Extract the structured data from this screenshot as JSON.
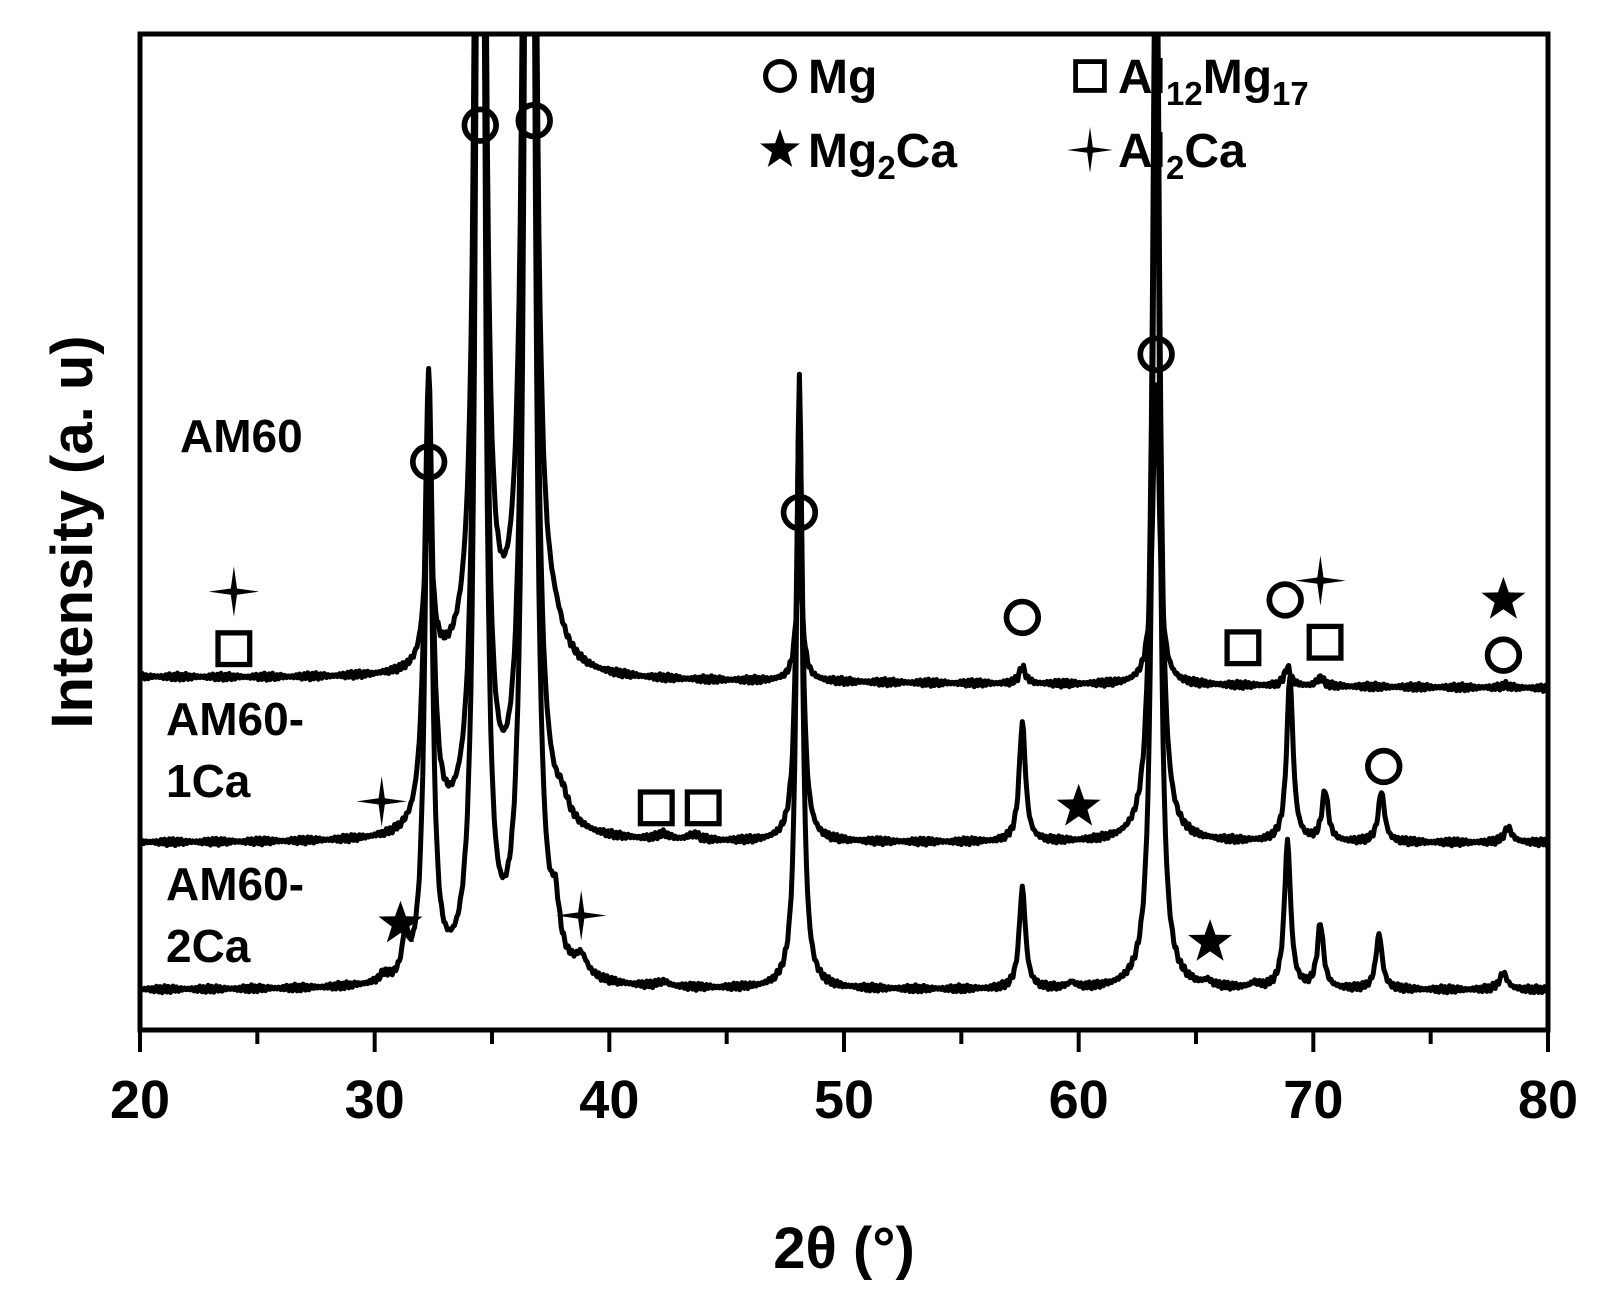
{
  "chart_data": {
    "type": "line",
    "xlabel": "2θ (°)",
    "ylabel": "Intensity (a. u)",
    "xlim": [
      20,
      80
    ],
    "x_ticks": [
      "20",
      "30",
      "40",
      "50",
      "60",
      "70",
      "80"
    ],
    "y_ticks": false,
    "grid": false,
    "legend_position": "top-right",
    "legend": [
      {
        "symbol": "circle",
        "label": "Mg",
        "parts": [
          {
            "t": "Mg",
            "sub": false
          }
        ]
      },
      {
        "symbol": "square",
        "label": "Al12Mg17",
        "parts": [
          {
            "t": "Al",
            "sub": false
          },
          {
            "t": "12",
            "sub": true
          },
          {
            "t": "Mg",
            "sub": false
          },
          {
            "t": "17",
            "sub": true
          }
        ]
      },
      {
        "symbol": "star5",
        "label": "Mg2Ca",
        "parts": [
          {
            "t": "Mg",
            "sub": false
          },
          {
            "t": "2",
            "sub": true
          },
          {
            "t": "Ca",
            "sub": false
          }
        ]
      },
      {
        "symbol": "star4",
        "label": "Al2Ca",
        "parts": [
          {
            "t": "Al",
            "sub": false
          },
          {
            "t": "2",
            "sub": true
          },
          {
            "t": "Ca",
            "sub": false
          }
        ]
      }
    ],
    "series": [
      {
        "name": "AM60",
        "label_lines": [
          "AM60"
        ],
        "baseline": 0.34,
        "drift": -0.012,
        "peaks": [
          [
            32.3,
            0.2,
            0.17
          ],
          [
            34.5,
            0.15,
            2.8
          ],
          [
            36.6,
            0.18,
            2.8
          ],
          [
            37.7,
            0.5,
            0.02
          ],
          [
            48.1,
            0.16,
            0.13
          ],
          [
            57.6,
            0.16,
            0.018
          ],
          [
            63.3,
            0.17,
            0.33
          ],
          [
            68.9,
            0.16,
            0.02
          ],
          [
            70.3,
            0.18,
            0.009
          ],
          [
            78.2,
            0.2,
            0.003
          ]
        ],
        "markers": [
          {
            "x": 32.3,
            "y": 0.574,
            "symbol": "circle"
          },
          {
            "x": 34.5,
            "y": 0.94,
            "symbol": "circle"
          },
          {
            "x": 36.8,
            "y": 0.945,
            "symbol": "circle"
          },
          {
            "x": 48.1,
            "y": 0.519,
            "symbol": "circle"
          },
          {
            "x": 57.6,
            "y": 0.405,
            "symbol": "circle"
          },
          {
            "x": 63.3,
            "y": 0.691,
            "symbol": "circle"
          },
          {
            "x": 68.8,
            "y": 0.424,
            "symbol": "circle"
          },
          {
            "x": 78.1,
            "y": 0.364,
            "symbol": "circle"
          },
          {
            "x": 24.0,
            "y": 0.371,
            "symbol": "square"
          },
          {
            "x": 67.0,
            "y": 0.372,
            "symbol": "square"
          },
          {
            "x": 70.5,
            "y": 0.378,
            "symbol": "square"
          },
          {
            "x": 24.0,
            "y": 0.433,
            "symbol": "star4"
          },
          {
            "x": 70.3,
            "y": 0.445,
            "symbol": "star4"
          },
          {
            "x": 78.1,
            "y": 0.424,
            "symbol": "star5"
          }
        ]
      },
      {
        "name": "AM60-1Ca",
        "label_lines": [
          "AM60-",
          "1Ca"
        ],
        "baseline": 0.16,
        "drift": -0.0,
        "peaks": [
          [
            32.3,
            0.2,
            0.5
          ],
          [
            34.5,
            0.15,
            2.5
          ],
          [
            36.6,
            0.18,
            2.5
          ],
          [
            38.0,
            0.3,
            0.02
          ],
          [
            42.3,
            0.3,
            0.006
          ],
          [
            43.6,
            0.3,
            0.006
          ],
          [
            48.1,
            0.15,
            0.48
          ],
          [
            57.6,
            0.16,
            0.13
          ],
          [
            63.3,
            0.17,
            1.1
          ],
          [
            69.0,
            0.16,
            0.18
          ],
          [
            70.5,
            0.16,
            0.055
          ],
          [
            72.9,
            0.16,
            0.055
          ],
          [
            78.3,
            0.2,
            0.016
          ]
        ],
        "markers": [
          {
            "x": 73.0,
            "y": 0.243,
            "symbol": "circle"
          },
          {
            "x": 42.0,
            "y": 0.198,
            "symbol": "square"
          },
          {
            "x": 44.0,
            "y": 0.198,
            "symbol": "square"
          },
          {
            "x": 30.3,
            "y": 0.205,
            "symbol": "star4"
          },
          {
            "x": 60.0,
            "y": 0.199,
            "symbol": "star5"
          }
        ]
      },
      {
        "name": "AM60-2Ca",
        "label_lines": [
          "AM60-",
          "2Ca"
        ],
        "baseline": 0.0,
        "drift": 0.0,
        "peaks": [
          [
            30.4,
            0.2,
            0.008
          ],
          [
            31.3,
            0.15,
            0.04
          ],
          [
            32.3,
            0.18,
            0.65
          ],
          [
            34.5,
            0.15,
            2.5
          ],
          [
            36.6,
            0.18,
            2.5
          ],
          [
            37.7,
            0.2,
            0.05
          ],
          [
            38.8,
            0.3,
            0.02
          ],
          [
            42.3,
            0.3,
            0.005
          ],
          [
            48.1,
            0.15,
            0.67
          ],
          [
            57.6,
            0.16,
            0.11
          ],
          [
            59.7,
            0.2,
            0.006
          ],
          [
            63.3,
            0.17,
            1.1
          ],
          [
            65.5,
            0.2,
            0.005
          ],
          [
            67.5,
            0.2,
            0.005
          ],
          [
            68.9,
            0.16,
            0.16
          ],
          [
            70.3,
            0.16,
            0.07
          ],
          [
            72.8,
            0.16,
            0.06
          ],
          [
            78.1,
            0.2,
            0.018
          ]
        ],
        "markers": [
          {
            "x": 31.1,
            "y": 0.072,
            "symbol": "star5"
          },
          {
            "x": 65.6,
            "y": 0.052,
            "symbol": "star5"
          },
          {
            "x": 38.8,
            "y": 0.081,
            "symbol": "star4"
          }
        ]
      }
    ]
  }
}
